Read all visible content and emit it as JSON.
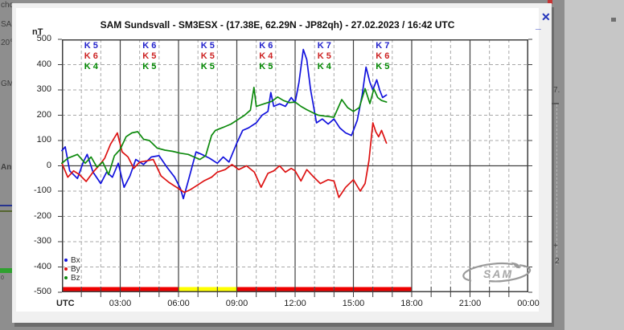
{
  "window": {
    "title": "SAM Sundsvall - SM3ESX - (17.38E, 62.29N - JP82qh) - 27.02.2023 / 16:42 UTC",
    "minimize_glyph": "_",
    "close_glyph": "✕"
  },
  "background": {
    "left_fragments": [
      "cho",
      "SA (",
      "20°",
      "GM",
      "An",
      "0"
    ],
    "right_fragments": {
      "seven": "7.",
      "plus": "+",
      "two": "2"
    }
  },
  "k_index": {
    "colors": [
      "#2222cc",
      "#cc2222",
      "#008800"
    ],
    "columns": [
      [
        "K 5",
        "K 6",
        "K 4"
      ],
      [
        "K 6",
        "K 5",
        "K 5"
      ],
      [
        "K 5",
        "K 5",
        "K 5"
      ],
      [
        "K 6",
        "K 4",
        "K 5"
      ],
      [
        "K 7",
        "K 5",
        "K 4"
      ],
      [
        "K 7",
        "K 6",
        "K 5"
      ]
    ]
  },
  "legend_note": "series order Bx By Bz",
  "logo": {
    "text": "SAM"
  },
  "chart_data": {
    "type": "line",
    "title": "SAM Sundsvall - SM3ESX - (17.38E, 62.29N - JP82qh) - 27.02.2023 / 16:42 UTC",
    "y_unit": "nT",
    "ylim": [
      -500,
      500
    ],
    "y_ticks": [
      "500",
      "400",
      "300",
      "200",
      "100",
      "0",
      "-100",
      "-200",
      "-300",
      "-400",
      "-500"
    ],
    "x_ticks": [
      "UTC",
      "03:00",
      "06:00",
      "09:00",
      "12:00",
      "15:00",
      "18:00",
      "21:00",
      "00:00"
    ],
    "x_hours_range": [
      0,
      24
    ],
    "data_end_utc": "16:42",
    "grid": "dashed hourly vertical / 100 nT horizontal, solid every 3 h and at 0 nT",
    "legend_position": "bottom-left",
    "activity_bar": [
      {
        "from_hour": 0,
        "to_hour": 6,
        "color": "#ee0000"
      },
      {
        "from_hour": 6,
        "to_hour": 9,
        "color": "#ffff00"
      },
      {
        "from_hour": 9,
        "to_hour": 18,
        "color": "#ee0000"
      }
    ],
    "series": [
      {
        "name": "Bx",
        "color": "#1212dd",
        "points": [
          [
            0.0,
            60
          ],
          [
            0.17,
            75
          ],
          [
            0.4,
            -20
          ],
          [
            0.8,
            -50
          ],
          [
            1.1,
            15
          ],
          [
            1.3,
            45
          ],
          [
            1.6,
            -25
          ],
          [
            2.0,
            -70
          ],
          [
            2.3,
            -25
          ],
          [
            2.6,
            -45
          ],
          [
            2.9,
            10
          ],
          [
            3.2,
            -85
          ],
          [
            3.5,
            -40
          ],
          [
            3.8,
            25
          ],
          [
            4.2,
            5
          ],
          [
            4.6,
            35
          ],
          [
            5.0,
            40
          ],
          [
            5.4,
            -5
          ],
          [
            5.8,
            -45
          ],
          [
            6.1,
            -90
          ],
          [
            6.25,
            -130
          ],
          [
            6.5,
            -60
          ],
          [
            6.9,
            55
          ],
          [
            7.2,
            45
          ],
          [
            7.6,
            30
          ],
          [
            8.0,
            10
          ],
          [
            8.3,
            35
          ],
          [
            8.6,
            15
          ],
          [
            9.0,
            90
          ],
          [
            9.3,
            140
          ],
          [
            9.6,
            150
          ],
          [
            10.0,
            170
          ],
          [
            10.3,
            200
          ],
          [
            10.6,
            215
          ],
          [
            10.75,
            290
          ],
          [
            10.9,
            235
          ],
          [
            11.2,
            245
          ],
          [
            11.5,
            235
          ],
          [
            11.8,
            270
          ],
          [
            12.0,
            250
          ],
          [
            12.2,
            330
          ],
          [
            12.42,
            460
          ],
          [
            12.6,
            420
          ],
          [
            12.8,
            300
          ],
          [
            13.1,
            170
          ],
          [
            13.4,
            185
          ],
          [
            13.7,
            165
          ],
          [
            14.0,
            185
          ],
          [
            14.3,
            150
          ],
          [
            14.6,
            130
          ],
          [
            14.9,
            120
          ],
          [
            15.2,
            180
          ],
          [
            15.45,
            280
          ],
          [
            15.65,
            390
          ],
          [
            15.85,
            330
          ],
          [
            16.0,
            300
          ],
          [
            16.2,
            340
          ],
          [
            16.35,
            300
          ],
          [
            16.5,
            270
          ],
          [
            16.7,
            280
          ]
        ]
      },
      {
        "name": "By",
        "color": "#dd1212",
        "points": [
          [
            0.0,
            10
          ],
          [
            0.3,
            -45
          ],
          [
            0.6,
            -20
          ],
          [
            0.9,
            -35
          ],
          [
            1.25,
            -62
          ],
          [
            1.6,
            -25
          ],
          [
            1.9,
            0
          ],
          [
            2.2,
            30
          ],
          [
            2.5,
            85
          ],
          [
            2.85,
            130
          ],
          [
            3.1,
            55
          ],
          [
            3.4,
            35
          ],
          [
            3.7,
            -10
          ],
          [
            4.0,
            15
          ],
          [
            4.4,
            20
          ],
          [
            4.7,
            25
          ],
          [
            5.1,
            -40
          ],
          [
            5.5,
            -65
          ],
          [
            5.9,
            -85
          ],
          [
            6.3,
            -105
          ],
          [
            6.6,
            -95
          ],
          [
            6.9,
            -80
          ],
          [
            7.3,
            -60
          ],
          [
            7.7,
            -45
          ],
          [
            8.0,
            -25
          ],
          [
            8.4,
            -15
          ],
          [
            8.75,
            5
          ],
          [
            9.1,
            -15
          ],
          [
            9.5,
            0
          ],
          [
            9.9,
            -25
          ],
          [
            10.25,
            -85
          ],
          [
            10.6,
            -30
          ],
          [
            10.9,
            -20
          ],
          [
            11.2,
            0
          ],
          [
            11.5,
            -25
          ],
          [
            11.8,
            -10
          ],
          [
            12.0,
            -20
          ],
          [
            12.3,
            -60
          ],
          [
            12.6,
            -15
          ],
          [
            12.9,
            -40
          ],
          [
            13.3,
            -70
          ],
          [
            13.7,
            -55
          ],
          [
            14.0,
            -60
          ],
          [
            14.25,
            -125
          ],
          [
            14.6,
            -85
          ],
          [
            15.0,
            -55
          ],
          [
            15.35,
            -100
          ],
          [
            15.6,
            -70
          ],
          [
            15.8,
            20
          ],
          [
            16.0,
            170
          ],
          [
            16.15,
            135
          ],
          [
            16.3,
            115
          ],
          [
            16.45,
            140
          ],
          [
            16.7,
            90
          ]
        ]
      },
      {
        "name": "Bz",
        "color": "#0d8a0d",
        "points": [
          [
            0.0,
            10
          ],
          [
            0.3,
            30
          ],
          [
            0.8,
            45
          ],
          [
            1.2,
            10
          ],
          [
            1.5,
            35
          ],
          [
            1.8,
            -5
          ],
          [
            2.1,
            15
          ],
          [
            2.4,
            -35
          ],
          [
            2.7,
            40
          ],
          [
            3.0,
            65
          ],
          [
            3.3,
            115
          ],
          [
            3.6,
            130
          ],
          [
            3.9,
            135
          ],
          [
            4.2,
            105
          ],
          [
            4.5,
            100
          ],
          [
            4.9,
            70
          ],
          [
            5.3,
            62
          ],
          [
            5.7,
            57
          ],
          [
            6.1,
            50
          ],
          [
            6.5,
            45
          ],
          [
            6.8,
            35
          ],
          [
            7.1,
            25
          ],
          [
            7.4,
            40
          ],
          [
            7.7,
            120
          ],
          [
            7.9,
            140
          ],
          [
            8.3,
            152
          ],
          [
            8.7,
            165
          ],
          [
            9.0,
            180
          ],
          [
            9.4,
            200
          ],
          [
            9.7,
            220
          ],
          [
            9.88,
            310
          ],
          [
            10.0,
            235
          ],
          [
            10.4,
            245
          ],
          [
            10.8,
            255
          ],
          [
            11.1,
            272
          ],
          [
            11.4,
            258
          ],
          [
            11.7,
            250
          ],
          [
            12.0,
            252
          ],
          [
            12.3,
            235
          ],
          [
            12.6,
            222
          ],
          [
            12.9,
            210
          ],
          [
            13.2,
            200
          ],
          [
            13.6,
            196
          ],
          [
            14.0,
            192
          ],
          [
            14.4,
            262
          ],
          [
            14.7,
            230
          ],
          [
            15.0,
            215
          ],
          [
            15.3,
            230
          ],
          [
            15.6,
            305
          ],
          [
            15.85,
            246
          ],
          [
            16.05,
            304
          ],
          [
            16.25,
            270
          ],
          [
            16.45,
            258
          ],
          [
            16.7,
            252
          ]
        ]
      }
    ]
  }
}
